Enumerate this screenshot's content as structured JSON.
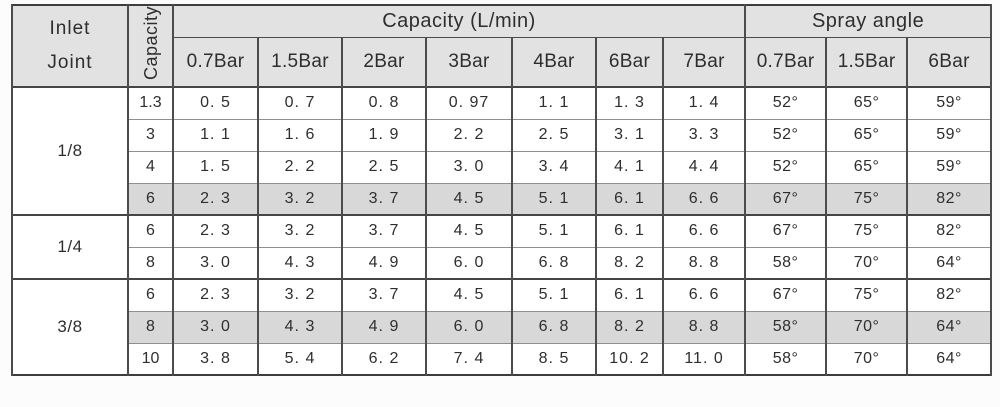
{
  "table": {
    "header": {
      "inlet_joint": "Inlet\nJoint",
      "capacity_vertical": "Capacity",
      "capacity_group": "Capacity (L/min)",
      "spray_group": "Spray angle",
      "capacity_bars": [
        "0.7Bar",
        "1.5Bar",
        "2Bar",
        "3Bar",
        "4Bar",
        "6Bar",
        "7Bar"
      ],
      "spray_bars": [
        "0.7Bar",
        "1.5Bar",
        "6Bar"
      ]
    },
    "groups": [
      {
        "inlet": "1/8",
        "rows": [
          {
            "capacity": "1.3",
            "values": [
              "0. 5",
              "0. 7",
              "0. 8",
              "0. 97",
              "1. 1",
              "1. 3",
              "1. 4"
            ],
            "angles": [
              "52°",
              "65°",
              "59°"
            ],
            "shaded": false
          },
          {
            "capacity": "3",
            "values": [
              "1. 1",
              "1. 6",
              "1. 9",
              "2. 2",
              "2. 5",
              "3. 1",
              "3. 3"
            ],
            "angles": [
              "52°",
              "65°",
              "59°"
            ],
            "shaded": false
          },
          {
            "capacity": "4",
            "values": [
              "1. 5",
              "2. 2",
              "2. 5",
              "3. 0",
              "3. 4",
              "4. 1",
              "4. 4"
            ],
            "angles": [
              "52°",
              "65°",
              "59°"
            ],
            "shaded": false
          },
          {
            "capacity": "6",
            "values": [
              "2. 3",
              "3. 2",
              "3. 7",
              "4. 5",
              "5. 1",
              "6. 1",
              "6. 6"
            ],
            "angles": [
              "67°",
              "75°",
              "82°"
            ],
            "shaded": true
          }
        ]
      },
      {
        "inlet": "1/4",
        "rows": [
          {
            "capacity": "6",
            "values": [
              "2. 3",
              "3. 2",
              "3. 7",
              "4. 5",
              "5. 1",
              "6. 1",
              "6. 6"
            ],
            "angles": [
              "67°",
              "75°",
              "82°"
            ],
            "shaded": false
          },
          {
            "capacity": "8",
            "values": [
              "3. 0",
              "4. 3",
              "4. 9",
              "6. 0",
              "6. 8",
              "8. 2",
              "8. 8"
            ],
            "angles": [
              "58°",
              "70°",
              "64°"
            ],
            "shaded": false
          }
        ]
      },
      {
        "inlet": "3/8",
        "rows": [
          {
            "capacity": "6",
            "values": [
              "2. 3",
              "3. 2",
              "3. 7",
              "4. 5",
              "5. 1",
              "6. 1",
              "6. 6"
            ],
            "angles": [
              "67°",
              "75°",
              "82°"
            ],
            "shaded": false
          },
          {
            "capacity": "8",
            "values": [
              "3. 0",
              "4. 3",
              "4. 9",
              "6. 0",
              "6. 8",
              "8. 2",
              "8. 8"
            ],
            "angles": [
              "58°",
              "70°",
              "64°"
            ],
            "shaded": true
          },
          {
            "capacity": "10",
            "values": [
              "3. 8",
              "5. 4",
              "6. 2",
              "7. 4",
              "8. 5",
              "10. 2",
              "11. 0"
            ],
            "angles": [
              "58°",
              "70°",
              "64°"
            ],
            "shaded": false
          }
        ]
      }
    ],
    "colors": {
      "header_bg": "#e2e2e2",
      "shaded_row_bg": "#d8d8d8",
      "border_dark": "#4c4c4c",
      "border_light": "#8f8f8f",
      "text": "#2e2e2e"
    }
  }
}
